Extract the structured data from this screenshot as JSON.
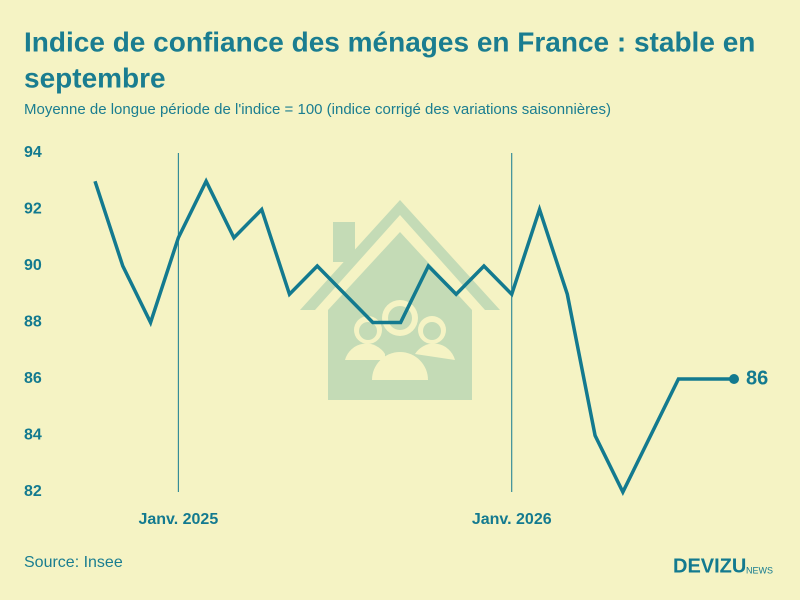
{
  "chart_data": {
    "type": "line",
    "title": "Indice de confiance des ménages en France : stable en",
    "title_line2": "septembre",
    "subtitle": "Moyenne de longue période de l'indice = 100 (indice corrigé des variations saisonnières)",
    "categories": [
      null,
      null,
      null,
      "Janv. 2025",
      null,
      null,
      null,
      null,
      null,
      null,
      null,
      null,
      null,
      null,
      null,
      "Janv. 2026",
      null,
      null,
      null,
      null,
      null,
      null,
      null,
      null
    ],
    "values": [
      93,
      90,
      88,
      91,
      93,
      91,
      92,
      89,
      90,
      89,
      88,
      88,
      90,
      89,
      90,
      89,
      92,
      89,
      84,
      82,
      84,
      86,
      86,
      86
    ],
    "color": "#137a8f",
    "ylim": [
      82,
      94
    ],
    "yticks": [
      82,
      84,
      86,
      88,
      90,
      92,
      94
    ],
    "source": "Source: Insee",
    "brand": "DEVIZU",
    "brand_suffix": "NEWS"
  }
}
